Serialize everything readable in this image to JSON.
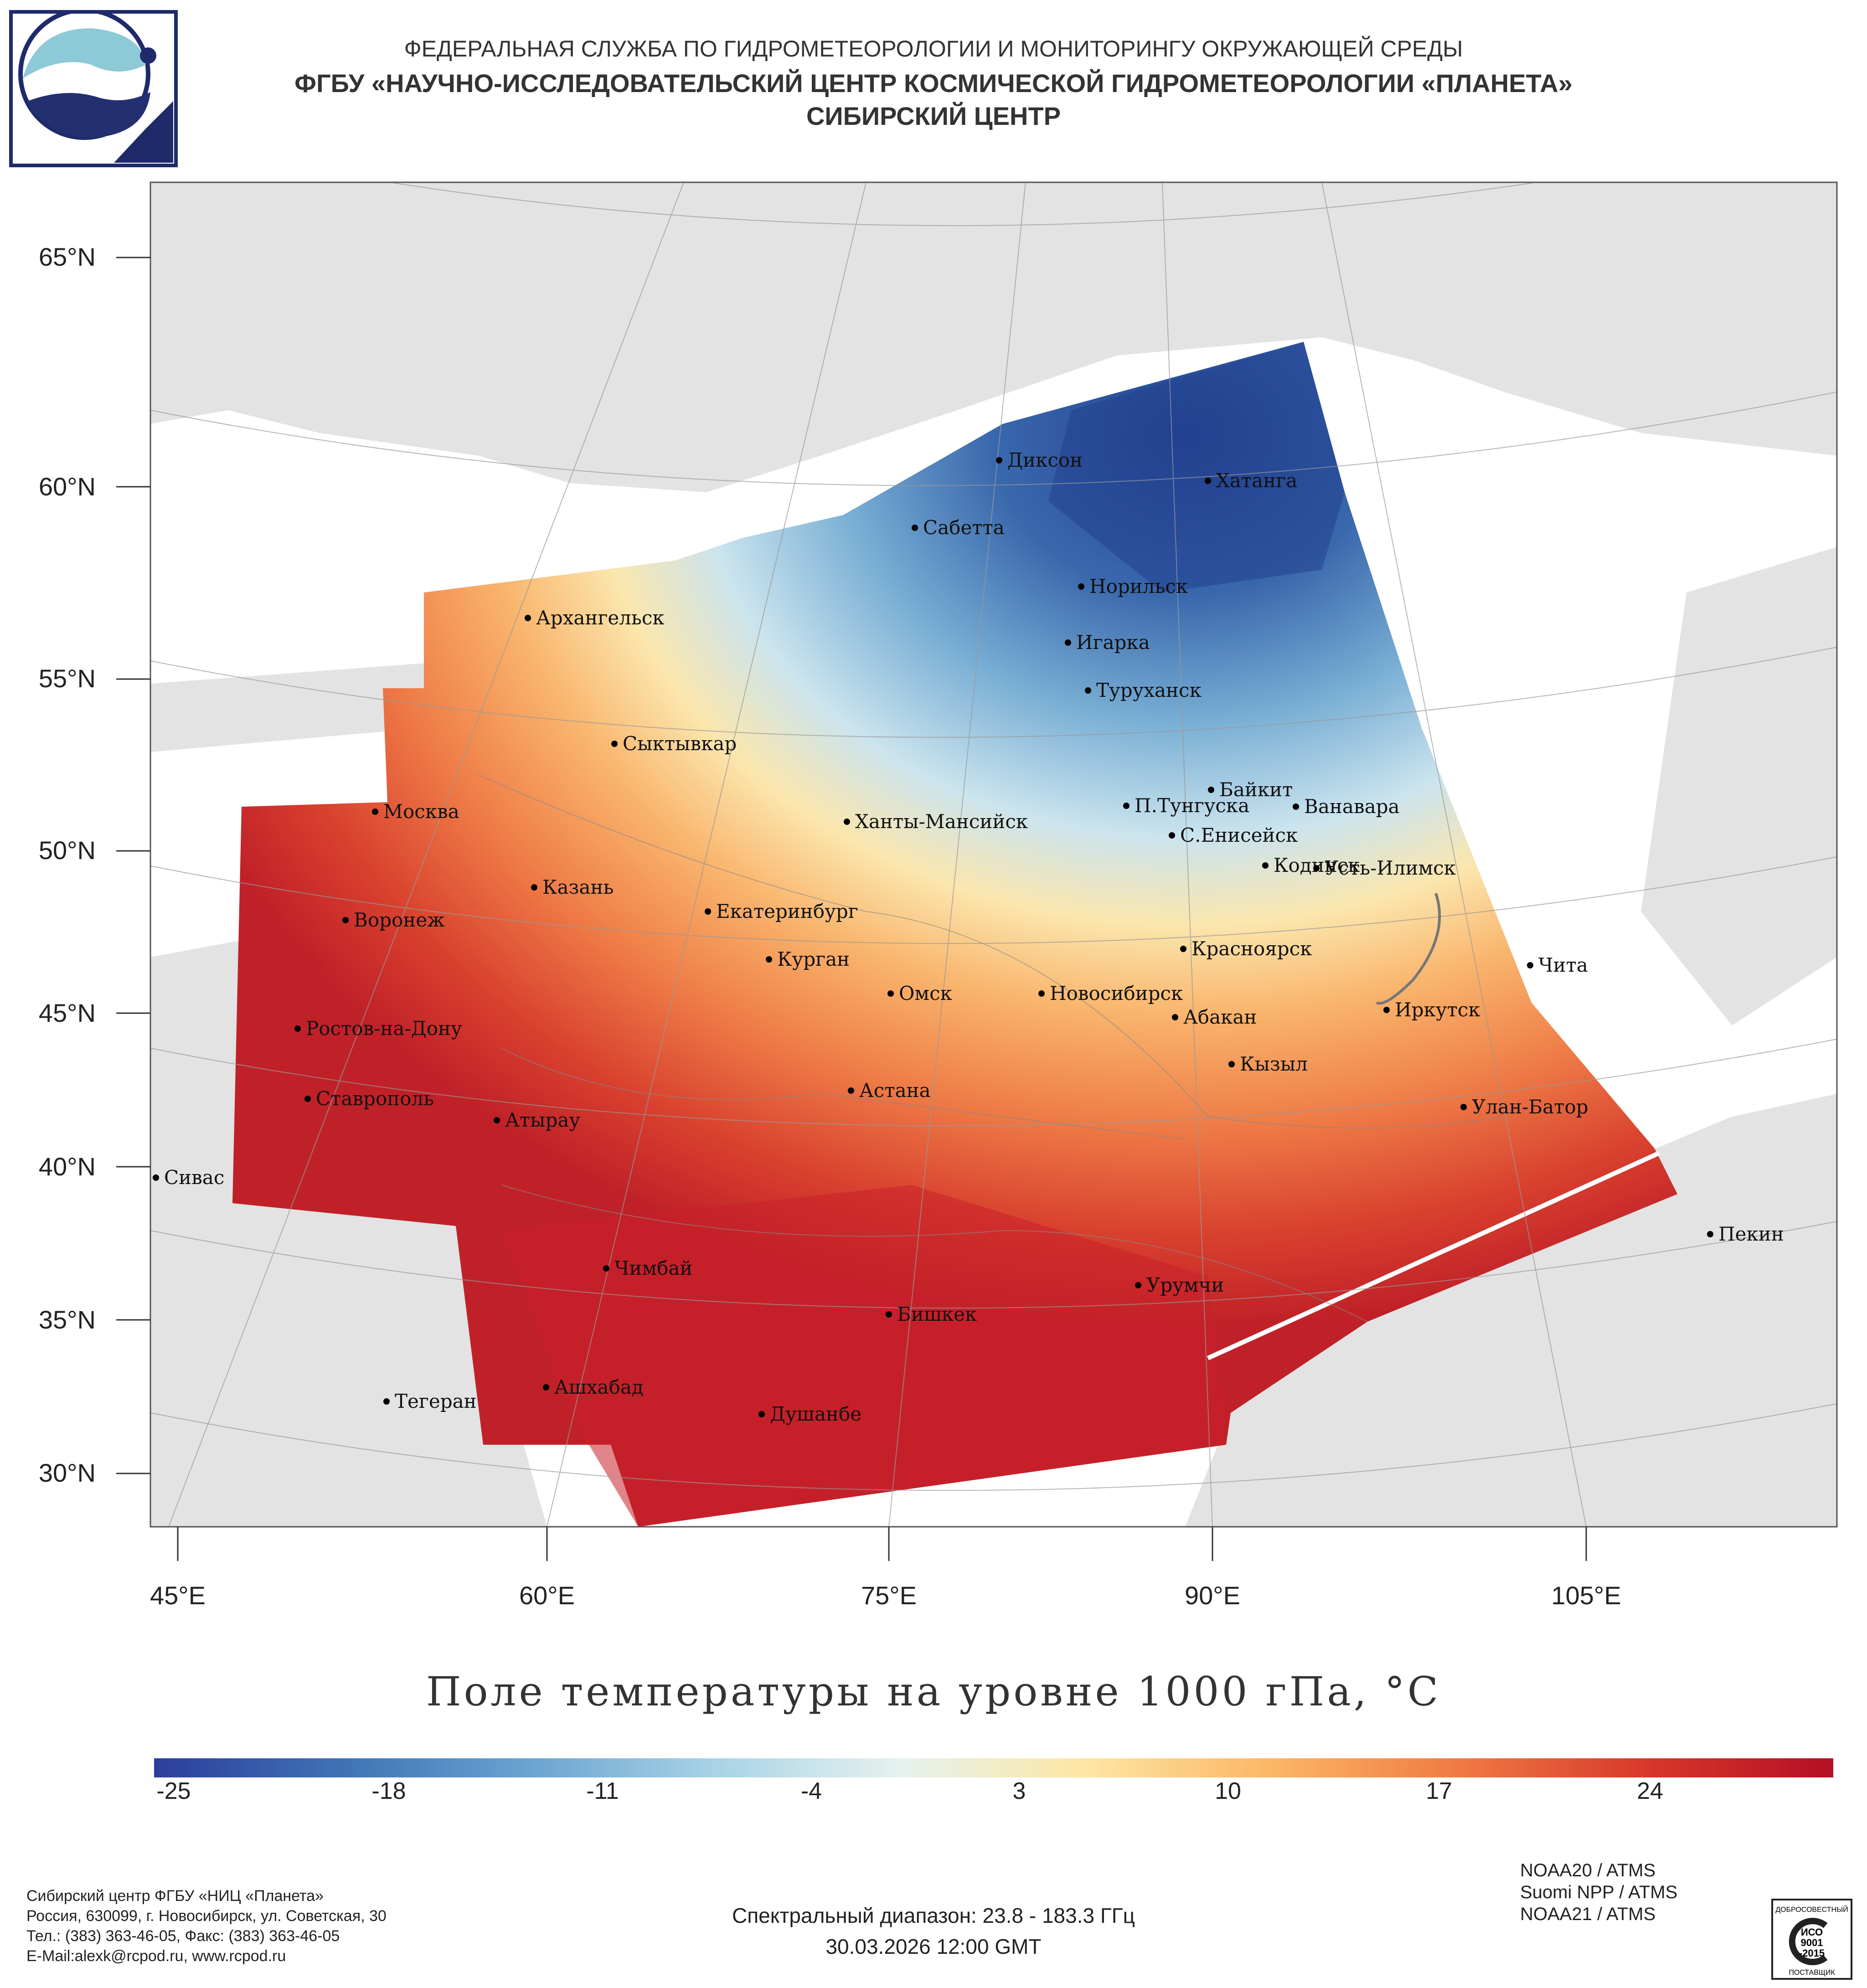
{
  "header": {
    "line1": "ФЕДЕРАЛЬНАЯ СЛУЖБА ПО ГИДРОМЕТЕОРОЛОГИИ И МОНИТОРИНГУ ОКРУЖАЮЩЕЙ СРЕДЫ",
    "line2": "ФГБУ «НАУЧНО-ИССЛЕДОВАТЕЛЬСКИЙ ЦЕНТР КОСМИЧЕСКОЙ ГИДРОМЕТЕОРОЛОГИИ «ПЛАНЕТА»",
    "line3": "СИБИРСКИЙ ЦЕНТР"
  },
  "lat_labels": [
    "65°N",
    "60°N",
    "55°N",
    "50°N",
    "45°N",
    "40°N",
    "35°N",
    "30°N"
  ],
  "lon_labels": [
    "45°E",
    "60°E",
    "75°E",
    "90°E",
    "105°E"
  ],
  "cities": [
    "Диксон",
    "Хатанга",
    "Сабетта",
    "Норильск",
    "Игарка",
    "Туруханск",
    "Архангельск",
    "Сыктывкар",
    "Байкит",
    "П.Тунгуска",
    "Ванавара",
    "Москва",
    "Ханты-Мансийск",
    "С.Енисейск",
    "Кодинск",
    "Усть-Илимск",
    "Казань",
    "Екатеринбург",
    "Воронеж",
    "Красноярск",
    "Курган",
    "Чита",
    "Омск",
    "Новосибирск",
    "Иркутск",
    "Ростов-на-Дону",
    "Абакан",
    "Кызыл",
    "Астана",
    "Ставрополь",
    "Улан-Батор",
    "Атырау",
    "Сивас",
    "Пекин",
    "Чимбай",
    "Урумчи",
    "Бишкек",
    "Ашхабад",
    "Тегеран",
    "Душанбе"
  ],
  "map_title": "Поле температуры на уровне 1000 гПа, °С",
  "colorbar": {
    "ticks": [
      "-25",
      "-18",
      "-11",
      "-4",
      "3",
      "10",
      "17",
      "24"
    ],
    "colors": [
      "#2c3e9c",
      "#3f72b5",
      "#6aa3d0",
      "#a8d3e6",
      "#e6f2ee",
      "#fde6a3",
      "#fcb565",
      "#f07a44",
      "#d7382a",
      "#b30f26"
    ]
  },
  "footer": {
    "org": "Сибирский центр ФГБУ «НИЦ «Планета»",
    "address": "Россия, 630099, г. Новосибирск, ул. Советская, 30",
    "phones": "Тел.: (383) 363-46-05, Факс: (383) 363-46-05",
    "email": "E-Mail:alexk@rcpod.ru, www.rcpod.ru",
    "spectral": "Спектральный диапазон: 23.8 - 183.3 ГГц",
    "datetime": "30.03.2026 12:00 GMT",
    "satellites": [
      "NOAA20 / ATMS",
      "Suomi NPP / ATMS",
      "NOAA21 / ATMS"
    ]
  },
  "certificate": {
    "top": "ДОБРОСОВЕСТНЫЙ",
    "name": "ИСО",
    "num": "9001",
    "year": "-2015",
    "bottom": "ПОСТАВЩИК"
  }
}
